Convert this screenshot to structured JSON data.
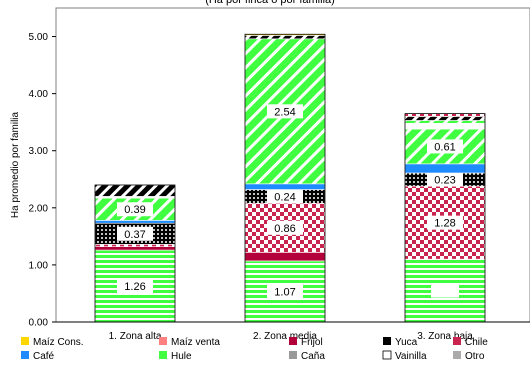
{
  "chart_data": {
    "type": "bar",
    "stacked": true,
    "title": "(Ha por finca o por familia)",
    "ylabel": "Ha promedio por familia",
    "ylim": [
      0,
      5.5
    ],
    "yticks": [
      "0.00",
      "1.00",
      "2.00",
      "3.00",
      "4.00",
      "5.00"
    ],
    "categories": [
      "1. Zona alta",
      "2. Zona media",
      "3. Zona baja"
    ],
    "series": [
      {
        "name": "Maíz Cons.",
        "color": "#ffd700",
        "pattern": "solid",
        "values": [
          0.0,
          0.02,
          0.0
        ]
      },
      {
        "name": "Maíz venta",
        "color": "#ff8080",
        "pattern": "solid",
        "values": [
          0.0,
          0.0,
          0.0
        ]
      },
      {
        "name": "Frijol",
        "color": "#b3003b",
        "pattern": "solid",
        "values": [
          0.0,
          0.0,
          0.0
        ]
      },
      {
        "name": "Yuca",
        "color": "#000000",
        "pattern": "solid",
        "values": [
          0.0,
          0.0,
          0.0
        ]
      },
      {
        "name": "Chile",
        "color": "#c8244e",
        "pattern": "checker",
        "values": [
          0.0,
          0.0,
          0.0
        ]
      },
      {
        "name": "Café",
        "color": "#1e8cff",
        "pattern": "solid",
        "values": [
          0.0,
          0.0,
          0.0
        ]
      },
      {
        "name": "Hule",
        "color": "#40ff40",
        "pattern": "hstripe",
        "values": [
          1.26,
          1.07,
          1.1
        ]
      },
      {
        "name": "Caña",
        "color": "#999999",
        "pattern": "solid",
        "values": [
          0.0,
          0.0,
          0.0
        ]
      },
      {
        "name": "Vainilla",
        "color": "#ffffff",
        "pattern": "solid",
        "values": [
          0.0,
          0.0,
          0.0
        ]
      },
      {
        "name": "Otro",
        "color": "#aaaaaa",
        "pattern": "solid",
        "values": [
          0.0,
          0.0,
          0.0
        ]
      }
    ],
    "stacks": [
      {
        "category": "1. Zona alta",
        "segments": [
          {
            "series": "Hule",
            "value": 1.26,
            "label": "1.26"
          },
          {
            "series": "Frijol",
            "value": 0.06,
            "label": ""
          },
          {
            "series": "Chile",
            "value": 0.04,
            "label": ""
          },
          {
            "series": "Yuca",
            "value": 0.37,
            "label": "0.37"
          },
          {
            "series": "Café",
            "value": 0.05,
            "label": ""
          },
          {
            "series": "Hule",
            "value": 0.39,
            "label": "0.39"
          },
          {
            "series": "Vainilla",
            "value": 0.03,
            "label": ""
          },
          {
            "series": "Yuca",
            "value": 0.2,
            "label": ""
          }
        ]
      },
      {
        "category": "2. Zona media",
        "segments": [
          {
            "series": "Hule",
            "value": 1.07,
            "label": "1.07"
          },
          {
            "series": "Frijol",
            "value": 0.15,
            "label": ""
          },
          {
            "series": "Chile",
            "value": 0.86,
            "label": "0.86"
          },
          {
            "series": "Yuca",
            "value": 0.24,
            "label": "0.24"
          },
          {
            "series": "Café",
            "value": 0.1,
            "label": ""
          },
          {
            "series": "Hule",
            "value": 2.54,
            "label": "2.54"
          },
          {
            "series": "Yuca",
            "value": 0.06,
            "label": ""
          },
          {
            "series": "Maíz Cons.",
            "value": 0.02,
            "label": ""
          }
        ]
      },
      {
        "category": "3. Zona baja",
        "segments": [
          {
            "series": "Hule",
            "value": 1.1,
            "label": ""
          },
          {
            "series": "Chile",
            "value": 1.28,
            "label": "1.28"
          },
          {
            "series": "Yuca",
            "value": 0.23,
            "label": "0.23"
          },
          {
            "series": "Café",
            "value": 0.16,
            "label": ""
          },
          {
            "series": "Hule",
            "value": 0.61,
            "label": "0.61"
          },
          {
            "series": "Vainilla",
            "value": 0.1,
            "label": ""
          },
          {
            "series": "Hule",
            "value": 0.05,
            "label": ""
          },
          {
            "series": "Yuca",
            "value": 0.07,
            "label": ""
          },
          {
            "series": "Chile",
            "value": 0.05,
            "label": ""
          }
        ]
      }
    ],
    "legend": {
      "position": "bottom"
    },
    "grid": false
  }
}
